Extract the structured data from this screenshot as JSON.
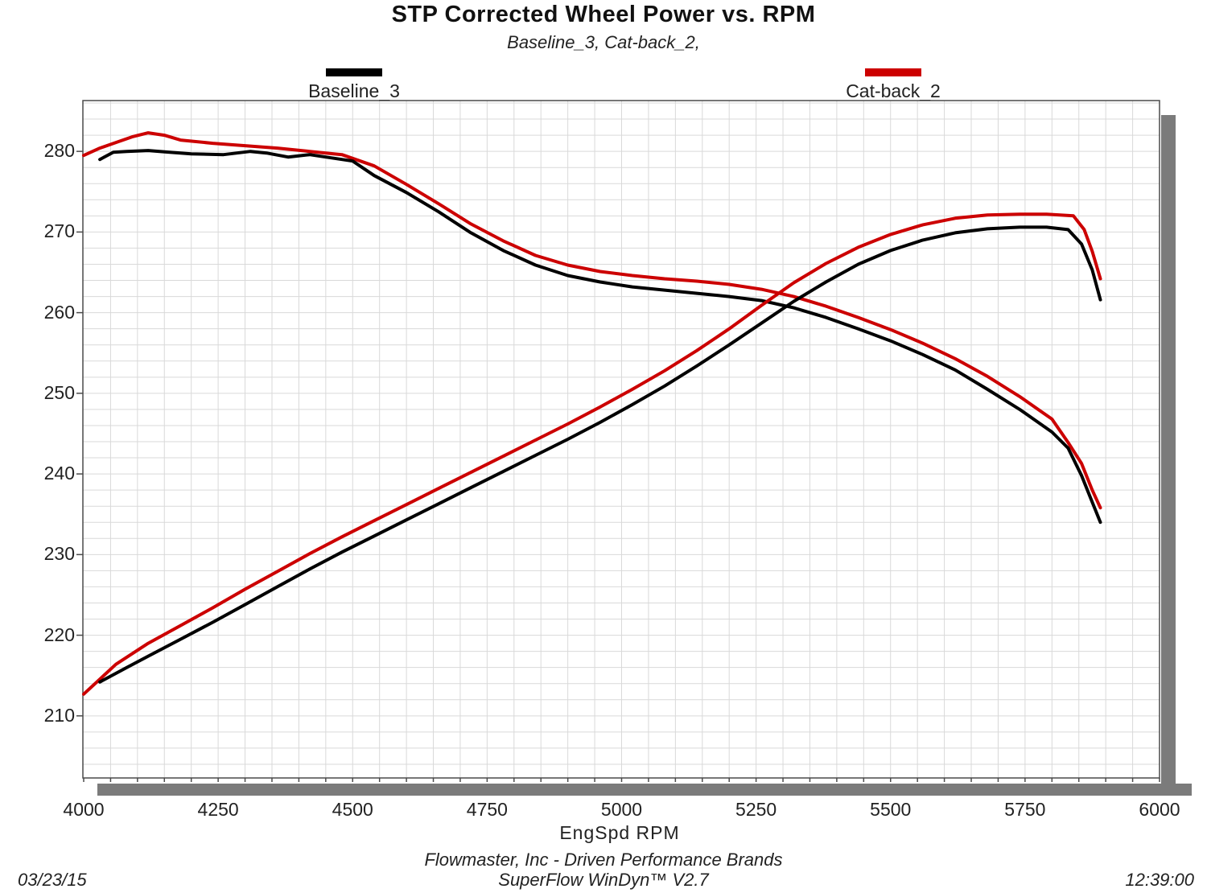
{
  "title": "STP Corrected Wheel Power vs. RPM",
  "subtitle": "Baseline_3, Cat-back_2,",
  "legend": [
    {
      "label": "Baseline_3",
      "color": "#000000"
    },
    {
      "label": "Cat-back_2",
      "color": "#cc0000"
    }
  ],
  "footer": {
    "company_line": "Flowmaster, Inc - Driven Performance Brands",
    "software_line": "SuperFlow WinDyn™ V2.7",
    "date": "03/23/15",
    "time": "12:39:00"
  },
  "colors": {
    "baseline": "#000000",
    "catback": "#cc0000",
    "grid": "#d9d9d9",
    "plot_border": "#4a4a4a",
    "shadow": "#7b7b7b",
    "text": "#222222"
  },
  "chart_data": {
    "type": "line",
    "title": "STP Corrected Wheel Power vs. RPM",
    "xlabel": "EngSpd RPM",
    "ylabel": "",
    "xlim": [
      4000,
      6000
    ],
    "ylim": [
      202.3,
      286.3
    ],
    "x_ticks": [
      4000,
      4250,
      4500,
      4750,
      5000,
      5250,
      5500,
      5750,
      6000
    ],
    "y_ticks": [
      210,
      220,
      230,
      240,
      250,
      260,
      270,
      280
    ],
    "grid": {
      "on": true,
      "x_minor_step_rpm": 50,
      "y_minor_step": 2
    },
    "legend_position": "top",
    "series": [
      {
        "name": "Cat-back_2 (descending curve)",
        "color": "#cc0000",
        "rpm": [
          4000,
          4030,
          4060,
          4090,
          4120,
          4150,
          4180,
          4240,
          4300,
          4360,
          4420,
          4480,
          4540,
          4600,
          4660,
          4720,
          4780,
          4840,
          4900,
          4960,
          5020,
          5080,
          5140,
          5200,
          5260,
          5320,
          5380,
          5440,
          5500,
          5560,
          5620,
          5680,
          5740,
          5800,
          5830,
          5855,
          5875,
          5890
        ],
        "values": [
          279.5,
          280.4,
          281.1,
          281.8,
          282.3,
          282.0,
          281.4,
          281.0,
          280.7,
          280.4,
          280.0,
          279.6,
          278.2,
          275.9,
          273.5,
          271.0,
          268.9,
          267.1,
          265.9,
          265.1,
          264.6,
          264.2,
          263.9,
          263.5,
          262.9,
          262.0,
          260.8,
          259.4,
          257.9,
          256.2,
          254.3,
          252.1,
          249.6,
          246.8,
          243.9,
          241.3,
          238.0,
          235.8
        ]
      },
      {
        "name": "Baseline_3 (descending curve)",
        "color": "#000000",
        "rpm": [
          4030,
          4055,
          4080,
          4120,
          4160,
          4200,
          4260,
          4310,
          4340,
          4380,
          4420,
          4460,
          4500,
          4540,
          4600,
          4660,
          4720,
          4780,
          4840,
          4900,
          4960,
          5020,
          5080,
          5140,
          5200,
          5260,
          5320,
          5380,
          5440,
          5500,
          5560,
          5620,
          5680,
          5740,
          5800,
          5830,
          5855,
          5875,
          5890
        ],
        "values": [
          279.0,
          279.9,
          280.0,
          280.1,
          279.9,
          279.7,
          279.6,
          280.0,
          279.8,
          279.3,
          279.6,
          279.2,
          278.8,
          277.0,
          274.9,
          272.5,
          269.9,
          267.7,
          265.9,
          264.6,
          263.8,
          263.2,
          262.8,
          262.4,
          262.0,
          261.5,
          260.6,
          259.4,
          258.0,
          256.5,
          254.8,
          252.9,
          250.5,
          248.0,
          245.2,
          243.2,
          239.8,
          236.5,
          234.0
        ]
      },
      {
        "name": "Cat-back_2 (ascending curve)",
        "color": "#cc0000",
        "rpm": [
          4000,
          4060,
          4120,
          4180,
          4240,
          4300,
          4360,
          4420,
          4480,
          4540,
          4600,
          4660,
          4720,
          4780,
          4840,
          4900,
          4960,
          5020,
          5080,
          5140,
          5200,
          5260,
          5320,
          5380,
          5440,
          5500,
          5560,
          5620,
          5680,
          5740,
          5790,
          5840,
          5860,
          5875,
          5890
        ],
        "values": [
          212.7,
          216.4,
          219.0,
          221.2,
          223.4,
          225.7,
          227.9,
          230.1,
          232.2,
          234.2,
          236.2,
          238.2,
          240.2,
          242.2,
          244.2,
          246.2,
          248.3,
          250.5,
          252.8,
          255.3,
          258.0,
          260.9,
          263.7,
          266.1,
          268.1,
          269.7,
          270.9,
          271.7,
          272.1,
          272.2,
          272.2,
          272.0,
          270.3,
          267.6,
          264.2
        ]
      },
      {
        "name": "Baseline_3 (ascending curve)",
        "color": "#000000",
        "rpm": [
          4030,
          4080,
          4120,
          4180,
          4240,
          4300,
          4360,
          4420,
          4480,
          4540,
          4600,
          4660,
          4720,
          4780,
          4840,
          4900,
          4960,
          5020,
          5080,
          5140,
          5200,
          5260,
          5320,
          5380,
          5440,
          5500,
          5560,
          5620,
          5680,
          5740,
          5790,
          5830,
          5855,
          5875,
          5890
        ],
        "values": [
          214.2,
          216.0,
          217.4,
          219.5,
          221.6,
          223.8,
          226.0,
          228.2,
          230.3,
          232.3,
          234.3,
          236.3,
          238.3,
          240.3,
          242.3,
          244.3,
          246.4,
          248.6,
          250.9,
          253.4,
          256.0,
          258.7,
          261.4,
          263.8,
          266.0,
          267.7,
          269.0,
          269.9,
          270.4,
          270.6,
          270.6,
          270.3,
          268.5,
          265.3,
          261.6
        ]
      }
    ]
  }
}
